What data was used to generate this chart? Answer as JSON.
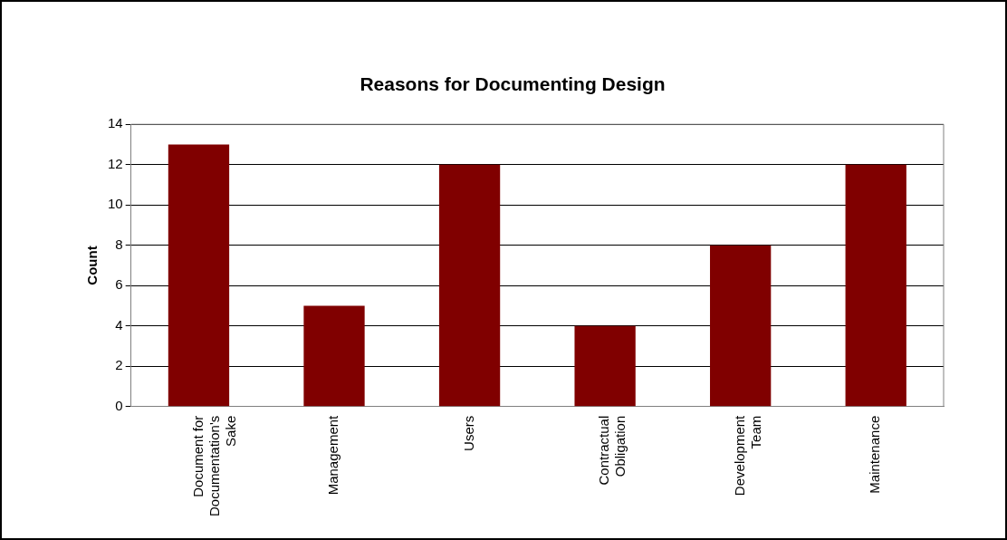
{
  "chart_data": {
    "type": "bar",
    "title": "Reasons for Documenting Design",
    "ylabel": "Count",
    "categories": [
      "Document for Documentation's Sake",
      "Management",
      "Users",
      "Contractual Obligation",
      "Development Team",
      "Maintenance"
    ],
    "values": [
      13,
      5,
      12,
      4,
      8,
      12
    ],
    "color": "#800000",
    "ylim": [
      0,
      14
    ],
    "yticks": [
      0,
      2,
      4,
      6,
      8,
      10,
      12,
      14
    ],
    "grid": "y",
    "legend": false
  }
}
